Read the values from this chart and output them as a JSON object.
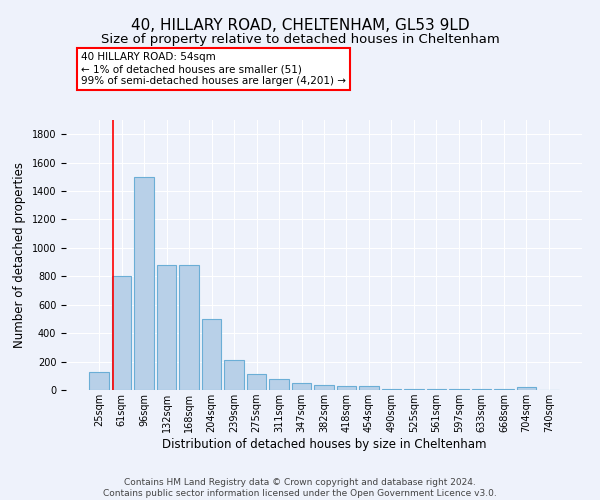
{
  "title": "40, HILLARY ROAD, CHELTENHAM, GL53 9LD",
  "subtitle": "Size of property relative to detached houses in Cheltenham",
  "xlabel": "Distribution of detached houses by size in Cheltenham",
  "ylabel": "Number of detached properties",
  "categories": [
    "25sqm",
    "61sqm",
    "96sqm",
    "132sqm",
    "168sqm",
    "204sqm",
    "239sqm",
    "275sqm",
    "311sqm",
    "347sqm",
    "382sqm",
    "418sqm",
    "454sqm",
    "490sqm",
    "525sqm",
    "561sqm",
    "597sqm",
    "633sqm",
    "668sqm",
    "704sqm",
    "740sqm"
  ],
  "values": [
    125,
    800,
    1500,
    880,
    880,
    500,
    210,
    110,
    75,
    50,
    35,
    30,
    25,
    10,
    10,
    10,
    10,
    10,
    10,
    20,
    0
  ],
  "bar_color": "#b8d0e8",
  "bar_edge_color": "#6baed6",
  "annotation_line1": "40 HILLARY ROAD: 54sqm",
  "annotation_line2": "← 1% of detached houses are smaller (51)",
  "annotation_line3": "99% of semi-detached houses are larger (4,201) →",
  "red_line_x": 0.62,
  "footnote": "Contains HM Land Registry data © Crown copyright and database right 2024.\nContains public sector information licensed under the Open Government Licence v3.0.",
  "ylim": [
    0,
    1900
  ],
  "background_color": "#eef2fb",
  "grid_color": "#ffffff",
  "title_fontsize": 11,
  "subtitle_fontsize": 9.5,
  "axis_label_fontsize": 8.5,
  "tick_fontsize": 7,
  "footnote_fontsize": 6.5,
  "annotation_fontsize": 7.5
}
